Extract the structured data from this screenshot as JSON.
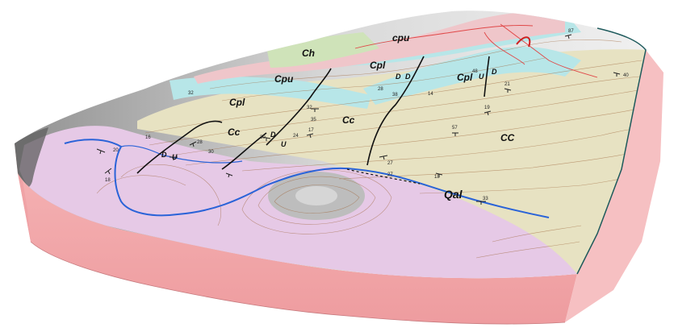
{
  "colors": {
    "background": "#ffffff",
    "block_side": "#f2a7a9",
    "block_side_edge": "#d9898c",
    "hillshade": "#c8c8c8",
    "unit_Cc": "#e7e2c2",
    "unit_Cpl": "#b7e6e8",
    "unit_Cpu": "#efc6ca",
    "unit_Ch": "#cfe3b9",
    "unit_Qal": "#e6c9e6",
    "contour": "#a0693f",
    "river": "#2a63d8",
    "fault": "#111111",
    "boundary": "#1e5a5c",
    "road": "#e04848"
  },
  "labels": {
    "cpu_top": "cpu",
    "ch": "Ch",
    "cpl_top": "Cpl",
    "cpu_mid": "Cpu",
    "cpl_left": "Cpl",
    "cpl_right": "Cpl",
    "cc_left": "Cc",
    "cc_mid": "Cc",
    "cc_right": "CC",
    "qal": "Qal",
    "d_left": "D",
    "u_left": "U",
    "d_mid": "D",
    "u_mid": "U",
    "d_center1": "D",
    "d_center2": "D",
    "d_right": "D",
    "u_right": "U"
  },
  "dips": [
    "18",
    "27",
    "33",
    "17",
    "32",
    "35",
    "24",
    "28",
    "16",
    "20",
    "14",
    "38",
    "57",
    "87",
    "19",
    "21",
    "48",
    "40",
    "27",
    "30",
    "30",
    "18",
    "32",
    "28"
  ]
}
